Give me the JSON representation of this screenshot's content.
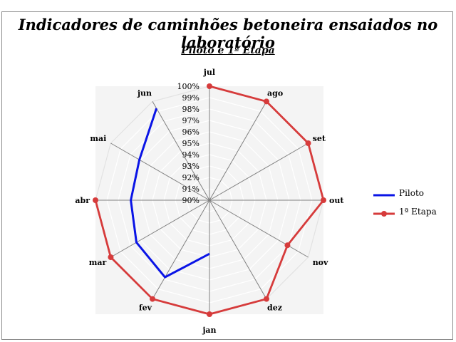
{
  "title": "Indicadores de caminhões betoneira ensaiados no laboratório",
  "subtitle": "Piloto e 1ª Etapa",
  "colors": {
    "piloto": "#0a14e6",
    "etapa1": "#d63b3b",
    "grid": "#dcdcdc",
    "spoke": "#808080",
    "plot_bg": "#f4f4f4"
  },
  "chart_data": {
    "type": "radar",
    "title": "Indicadores de caminhões betoneira ensaiados no laboratório",
    "subtitle": "Piloto e 1ª Etapa",
    "categories": [
      "jul",
      "ago",
      "set",
      "out",
      "nov",
      "dez",
      "jan",
      "fev",
      "mar",
      "abr",
      "mai",
      "jun"
    ],
    "range": [
      0.9,
      1.0
    ],
    "ticks": [
      "90%",
      "91%",
      "92%",
      "93%",
      "94%",
      "95%",
      "96%",
      "97%",
      "98%",
      "99%",
      "100%"
    ],
    "grid": true,
    "legend_position": "right",
    "series": [
      {
        "name": "Piloto",
        "values": [
          null,
          null,
          null,
          null,
          null,
          null,
          0.947,
          0.978,
          0.974,
          0.969,
          0.971,
          0.993
        ],
        "markers": false
      },
      {
        "name": "1ª Etapa",
        "values": [
          1.0,
          1.0,
          1.0,
          1.0,
          0.979,
          1.0,
          1.0,
          1.0,
          1.0,
          1.0,
          null,
          null
        ],
        "markers": true
      }
    ]
  }
}
